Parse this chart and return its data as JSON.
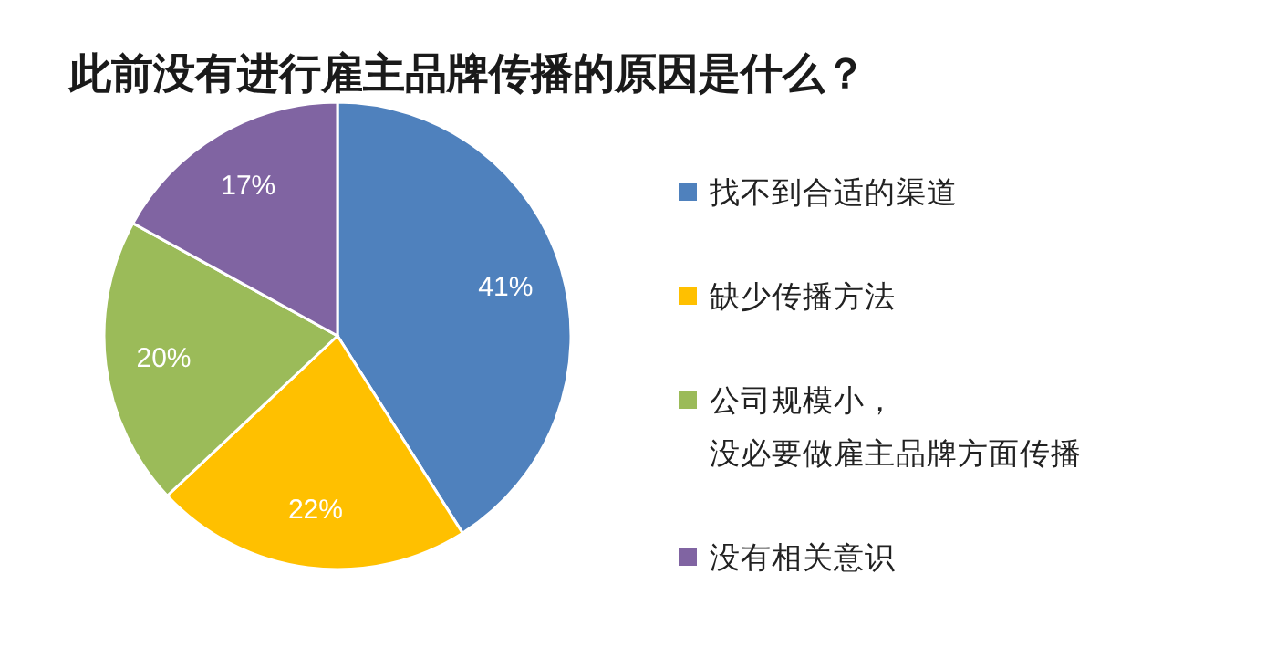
{
  "chart_data": {
    "type": "pie",
    "title": "此前没有进行雇主品牌传播的原因是什么？",
    "categories": [
      "找不到合适的渠道",
      "缺少传播方法",
      "公司规模小，没必要做雇主品牌方面传播",
      "没有相关意识"
    ],
    "values": [
      41,
      22,
      20,
      17
    ],
    "colors": [
      "#4f81bd",
      "#ffc000",
      "#9bbb59",
      "#8064a2"
    ],
    "value_labels": [
      "41%",
      "22%",
      "20%",
      "17%"
    ],
    "legend": "right"
  }
}
